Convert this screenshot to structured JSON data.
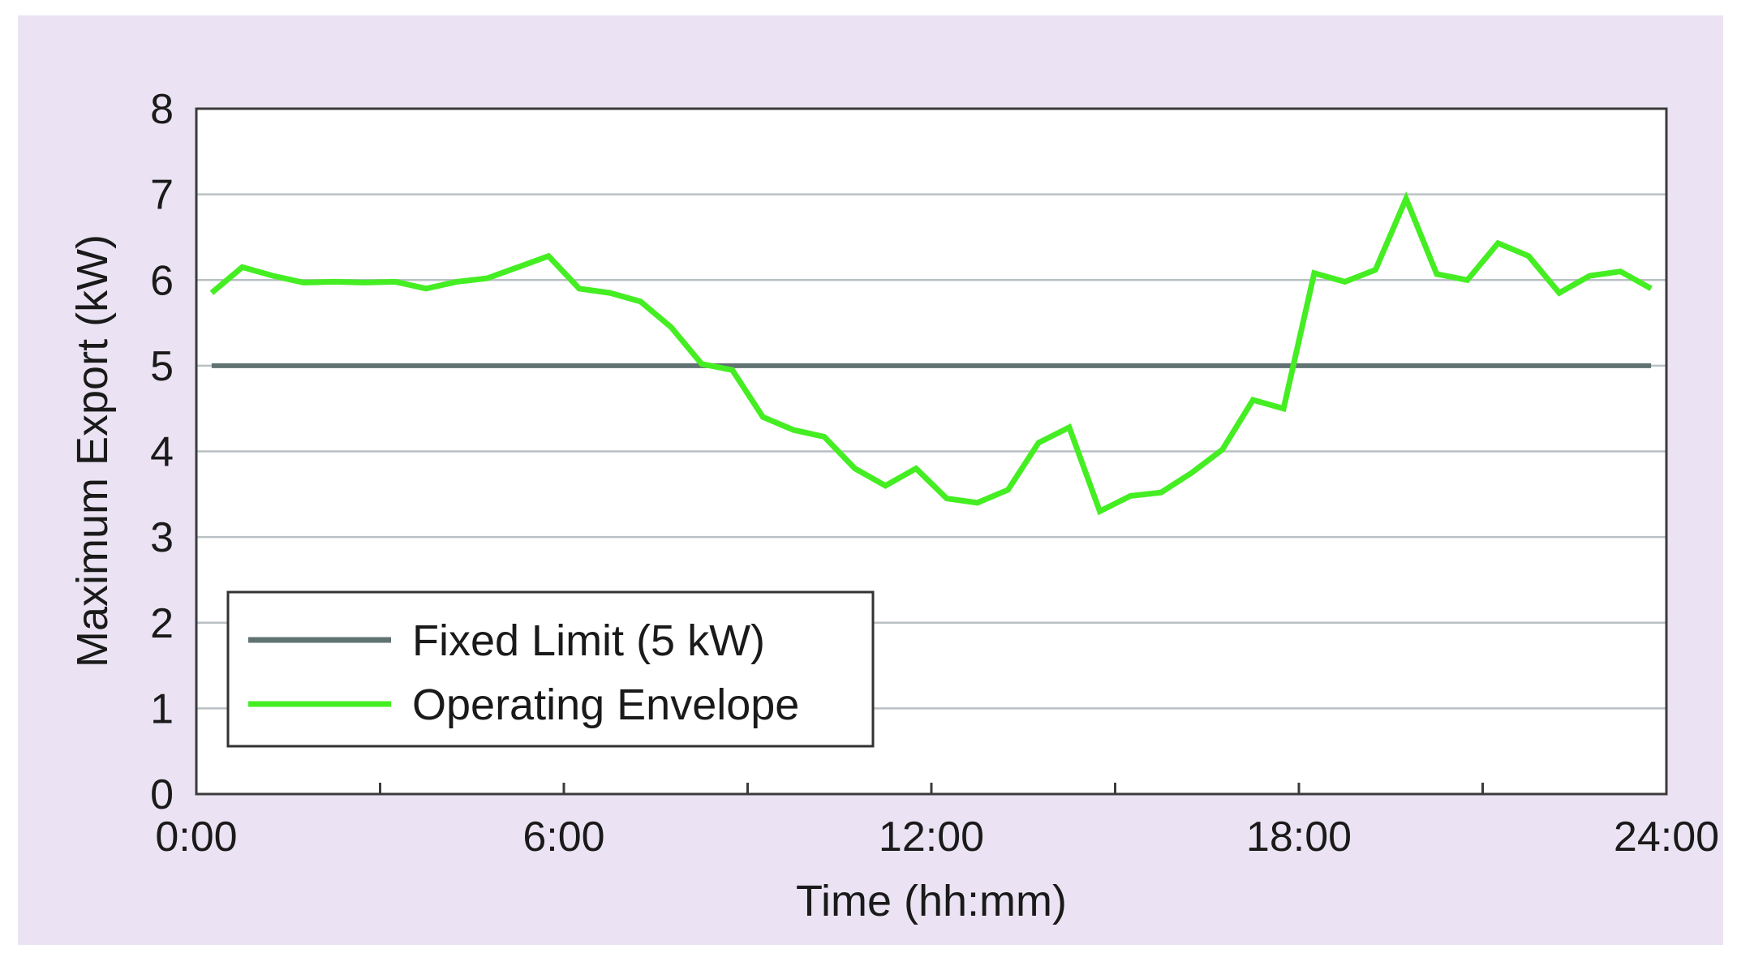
{
  "chart_data": {
    "type": "line",
    "title": "",
    "xlabel": "Time (hh:mm)",
    "ylabel": "Maximum Export (kW)",
    "xlim": [
      0,
      24
    ],
    "ylim": [
      0,
      8
    ],
    "x_ticks": [
      0,
      3,
      6,
      9,
      12,
      15,
      18,
      21,
      24
    ],
    "x_tick_labels": [
      {
        "value": 0,
        "label": "0:00"
      },
      {
        "value": 6,
        "label": "6:00"
      },
      {
        "value": 12,
        "label": "12:00"
      },
      {
        "value": 18,
        "label": "18:00"
      },
      {
        "value": 24,
        "label": "24:00"
      }
    ],
    "y_tick_labels": [
      {
        "value": 0,
        "label": "0"
      },
      {
        "value": 1,
        "label": "1"
      },
      {
        "value": 2,
        "label": "2"
      },
      {
        "value": 3,
        "label": "3"
      },
      {
        "value": 4,
        "label": "4"
      },
      {
        "value": 5,
        "label": "5"
      },
      {
        "value": 6,
        "label": "6"
      },
      {
        "value": 7,
        "label": "7"
      },
      {
        "value": 8,
        "label": "8"
      }
    ],
    "grid": "horizontal",
    "legend_position": "bottom-left",
    "series": [
      {
        "name": "Fixed Limit (5 kW)",
        "color": "#617272",
        "x": [
          0.25,
          23.75
        ],
        "y": [
          5.0,
          5.0
        ]
      },
      {
        "name": "Operating Envelope",
        "color": "#44ee22",
        "x": [
          0.25,
          0.75,
          1.25,
          1.75,
          2.25,
          2.75,
          3.25,
          3.75,
          4.25,
          4.75,
          5.25,
          5.75,
          6.25,
          6.75,
          7.25,
          7.75,
          8.25,
          8.75,
          9.25,
          9.75,
          10.25,
          10.75,
          11.25,
          11.75,
          12.25,
          12.75,
          13.25,
          13.75,
          14.25,
          14.75,
          15.25,
          15.75,
          16.25,
          16.75,
          17.25,
          17.75,
          18.25,
          18.75,
          19.25,
          19.75,
          20.25,
          20.75,
          21.25,
          21.75,
          22.25,
          22.75,
          23.25,
          23.75
        ],
        "y": [
          5.85,
          6.15,
          6.05,
          5.97,
          5.98,
          5.97,
          5.98,
          5.9,
          5.98,
          6.02,
          6.15,
          6.28,
          5.9,
          5.85,
          5.75,
          5.45,
          5.02,
          4.95,
          4.4,
          4.25,
          4.17,
          3.8,
          3.6,
          3.8,
          3.45,
          3.4,
          3.55,
          4.1,
          4.28,
          3.3,
          3.48,
          3.52,
          3.75,
          4.02,
          4.6,
          4.5,
          6.08,
          5.98,
          6.12,
          6.95,
          6.07,
          6.0,
          6.43,
          6.28,
          5.85,
          6.05,
          6.1,
          5.9
        ]
      }
    ]
  }
}
